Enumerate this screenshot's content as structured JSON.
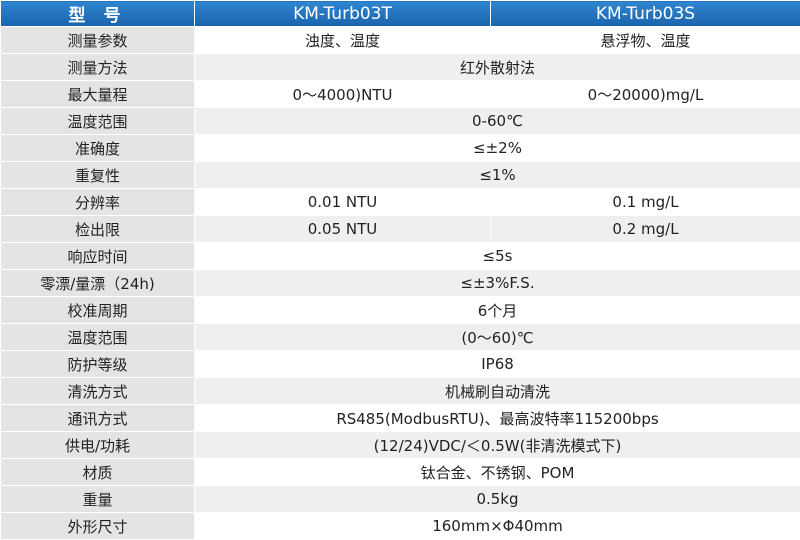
{
  "table": {
    "header": [
      "型 号",
      "KM-Turb03T",
      "KM-Turb03S"
    ],
    "rows": [
      {
        "label": "测量参数",
        "cells": [
          "浊度、温度",
          "悬浮物、温度"
        ]
      },
      {
        "label": "测量方法",
        "cells": [
          "红外散射法"
        ]
      },
      {
        "label": "最大量程",
        "cells": [
          "0～4000)NTU",
          "0～20000)mg/L"
        ]
      },
      {
        "label": "温度范围",
        "cells": [
          "0-60℃"
        ]
      },
      {
        "label": "准确度",
        "cells": [
          "≤±2%"
        ]
      },
      {
        "label": "重复性",
        "cells": [
          "≤1%"
        ]
      },
      {
        "label": "分辨率",
        "cells": [
          "0.01 NTU",
          "0.1 mg/L"
        ]
      },
      {
        "label": "检出限",
        "cells": [
          "0.05 NTU",
          "0.2 mg/L"
        ]
      },
      {
        "label": "响应时间",
        "cells": [
          "≤5s"
        ]
      },
      {
        "label": "零漂/量漂（24h)",
        "cells": [
          "≤±3%F.S."
        ]
      },
      {
        "label": "校准周期",
        "cells": [
          "6个月"
        ]
      },
      {
        "label": "温度范围",
        "cells": [
          "(0～60)℃"
        ]
      },
      {
        "label": "防护等级",
        "cells": [
          "IP68"
        ]
      },
      {
        "label": "清洗方式",
        "cells": [
          "机械刷自动清洗"
        ]
      },
      {
        "label": "通讯方式",
        "cells": [
          "RS485(ModbusRTU)、最高波特率115200bps"
        ]
      },
      {
        "label": "供电/功耗",
        "cells": [
          "(12/24)VDC/＜0.5W(非清洗模式下)"
        ]
      },
      {
        "label": "材质",
        "cells": [
          "钛合金、不锈钢、POM"
        ]
      },
      {
        "label": "重量",
        "cells": [
          "0.5kg"
        ]
      },
      {
        "label": "外形尺寸",
        "cells": [
          "160mm×Φ40mm"
        ]
      }
    ]
  }
}
